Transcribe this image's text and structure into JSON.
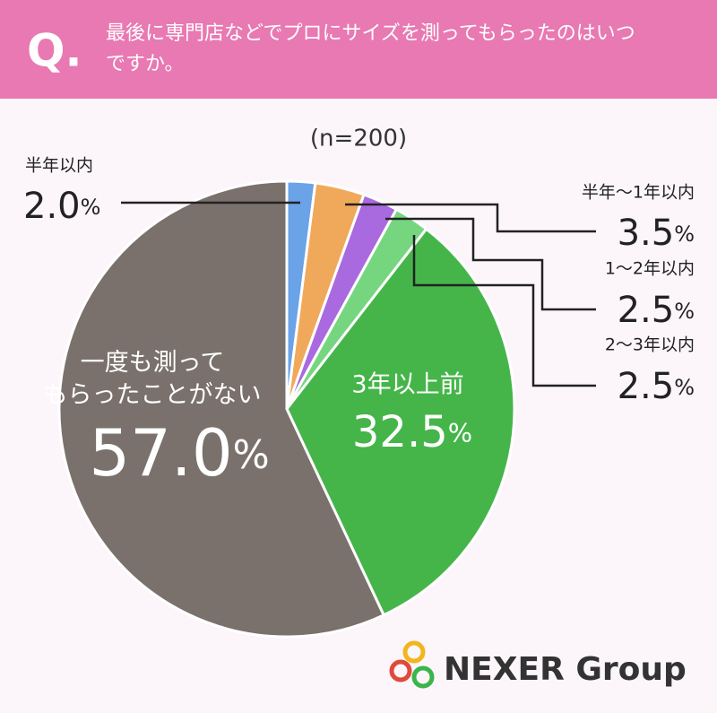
{
  "chart_data": {
    "type": "pie",
    "title_marker": "Q.",
    "title": "最後に専門店などでプロにサイズを測ってもらったのはいつですか。",
    "subtitle": "(n=200)",
    "brand": "NEXER Group",
    "categories": [
      "半年以内",
      "半年〜1年以内",
      "1〜2年以内",
      "2〜3年以内",
      "3年以上前",
      "一度も測ってもらったことがない"
    ],
    "values": [
      2.0,
      3.5,
      2.5,
      2.5,
      32.5,
      57.0
    ],
    "value_labels": [
      "2.0%",
      "3.5%",
      "2.5%",
      "2.5%",
      "32.5%",
      "57.0%"
    ],
    "colors": [
      "#6aa3e8",
      "#f0a95a",
      "#a96ae0",
      "#76d67f",
      "#45b54a",
      "#7a716c"
    ]
  }
}
